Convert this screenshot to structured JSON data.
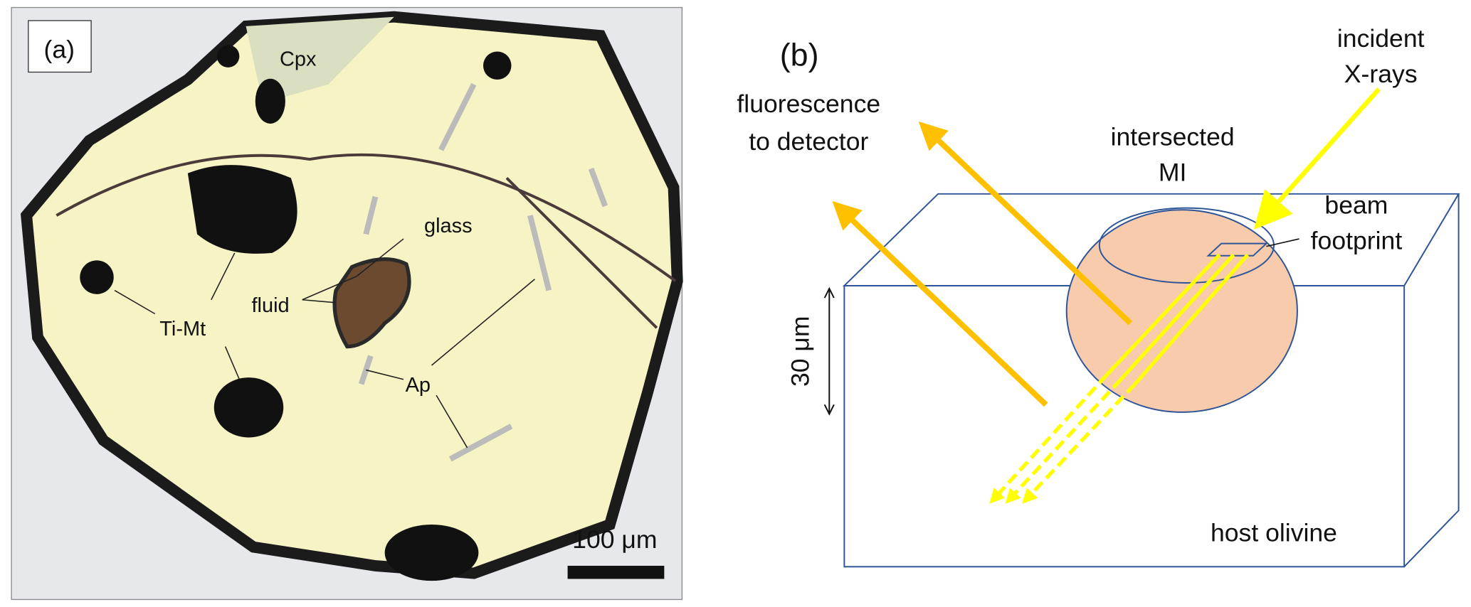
{
  "panel_a": {
    "label": "(a)",
    "annotations": {
      "cpx": "Cpx",
      "glass": "glass",
      "fluid": "fluid",
      "ti_mt": "Ti-Mt",
      "ap": "Ap"
    },
    "scale_bar": "100 μm"
  },
  "panel_b": {
    "label": "(b)",
    "fluorescence": [
      "fluorescence",
      "to detector"
    ],
    "incident": [
      "incident",
      "X-rays"
    ],
    "intersected": [
      "intersected",
      "MI"
    ],
    "beam": [
      "beam",
      "footprint"
    ],
    "depth": "30 μm",
    "host": "host olivine"
  }
}
